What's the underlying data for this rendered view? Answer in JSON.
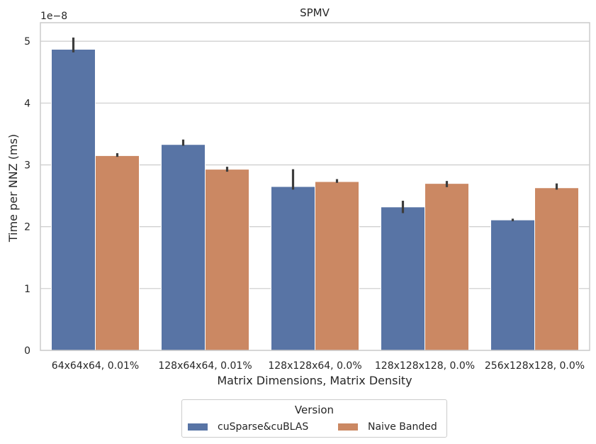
{
  "chart_data": {
    "type": "bar",
    "title": "SPMV",
    "xlabel": "Matrix Dimensions, Matrix Density",
    "ylabel": "Time per NNZ (ms)",
    "y_offset_label": "1e−8",
    "y_ticks": [
      "0",
      "1",
      "2",
      "3",
      "4",
      "5"
    ],
    "y_tick_values": [
      0,
      1,
      2,
      3,
      4,
      5
    ],
    "ylim": [
      0,
      5.3
    ],
    "grid": "horizontal",
    "legend_placement": "below",
    "categories": [
      "64x64x64, 0.01%",
      "128x64x64, 0.01%",
      "128x128x64, 0.0%",
      "128x128x128, 0.0%",
      "256x128x128, 0.0%"
    ],
    "series": [
      {
        "name": "cuSparse&cuBLAS",
        "color": "#5874a5",
        "values": [
          4.87,
          3.33,
          2.65,
          2.32,
          2.11
        ],
        "error_low": [
          4.82,
          3.31,
          2.6,
          2.22,
          2.09
        ],
        "error_high": [
          5.06,
          3.41,
          2.93,
          2.42,
          2.13
        ]
      },
      {
        "name": "Naive Banded",
        "color": "#cb8863",
        "values": [
          3.15,
          2.93,
          2.73,
          2.7,
          2.63
        ],
        "error_low": [
          3.13,
          2.89,
          2.71,
          2.64,
          2.6
        ],
        "error_high": [
          3.19,
          2.97,
          2.77,
          2.74,
          2.7
        ]
      }
    ],
    "legend": {
      "title": "Version",
      "entries": [
        "cuSparse&cuBLAS",
        "Naive Banded"
      ]
    }
  }
}
